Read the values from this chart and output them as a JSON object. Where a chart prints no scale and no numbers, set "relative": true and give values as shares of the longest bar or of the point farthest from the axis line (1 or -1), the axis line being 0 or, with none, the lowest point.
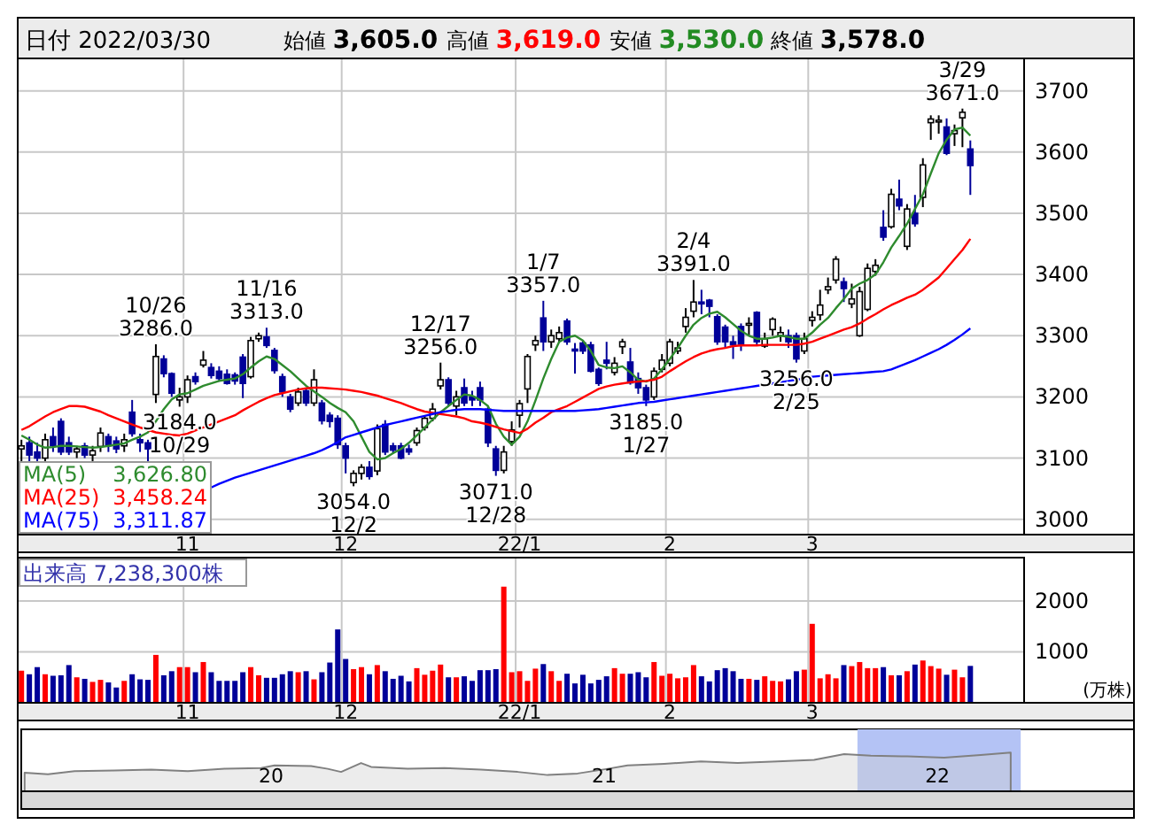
{
  "chart_data": [
    {
      "type": "candlestick",
      "title": "日付 2022/03/30",
      "categories": [
        null,
        null,
        null,
        null,
        null,
        null,
        null,
        null,
        null,
        null,
        null,
        null,
        null,
        null,
        null,
        null,
        null,
        null,
        null,
        null,
        null,
        "11",
        null,
        null,
        null,
        null,
        null,
        null,
        null,
        null,
        null,
        null,
        null,
        null,
        null,
        null,
        null,
        null,
        null,
        null,
        null,
        "12",
        null,
        null,
        null,
        null,
        null,
        null,
        null,
        null,
        null,
        null,
        null,
        null,
        null,
        null,
        null,
        null,
        null,
        null,
        null,
        null,
        null,
        "22/1",
        null,
        null,
        null,
        null,
        null,
        null,
        null,
        null,
        null,
        null,
        null,
        null,
        null,
        null,
        null,
        null,
        null,
        null,
        "2",
        null,
        null,
        null,
        null,
        null,
        null,
        null,
        null,
        null,
        null,
        null,
        null,
        null,
        null,
        null,
        null,
        null,
        "3",
        null,
        null,
        null,
        null,
        null,
        null,
        null,
        null,
        null,
        null,
        null,
        null,
        null,
        null,
        null,
        null,
        null,
        null,
        null,
        null
      ],
      "ohlc": [
        [
          3115,
          3130,
          3095,
          3120
        ],
        [
          3125,
          3135,
          3095,
          3105
        ],
        [
          3110,
          3125,
          3095,
          3100
        ],
        [
          3100,
          3140,
          3095,
          3130
        ],
        [
          3135,
          3150,
          3110,
          3120
        ],
        [
          3160,
          3165,
          3105,
          3110
        ],
        [
          3125,
          3135,
          3105,
          3110
        ],
        [
          3110,
          3120,
          3100,
          3115
        ],
        [
          3120,
          3125,
          3100,
          3105
        ],
        [
          3105,
          3120,
          3095,
          3112
        ],
        [
          3119,
          3150,
          3110,
          3141
        ],
        [
          3135,
          3140,
          3110,
          3120
        ],
        [
          3128,
          3135,
          3108,
          3115
        ],
        [
          3120,
          3140,
          3110,
          3130
        ],
        [
          3175,
          3195,
          3135,
          3140
        ],
        [
          3130,
          3140,
          3110,
          3125
        ],
        [
          3125,
          3130,
          3095,
          3115
        ],
        [
          3204,
          3286,
          3190,
          3266
        ],
        [
          3262,
          3268,
          3232,
          3238
        ],
        [
          3238,
          3240,
          3200,
          3206
        ],
        [
          3195,
          3215,
          3184,
          3200
        ],
        [
          3200,
          3235,
          3190,
          3228
        ],
        [
          3233,
          3240,
          3220,
          3225
        ],
        [
          3252,
          3275,
          3248,
          3260
        ],
        [
          3248,
          3255,
          3230,
          3235
        ],
        [
          3242,
          3250,
          3225,
          3230
        ],
        [
          3237,
          3245,
          3220,
          3222
        ],
        [
          3236,
          3240,
          3220,
          3226
        ],
        [
          3265,
          3270,
          3198,
          3222
        ],
        [
          3233,
          3298,
          3230,
          3292
        ],
        [
          3295,
          3305,
          3290,
          3300
        ],
        [
          3298,
          3313,
          3280,
          3284
        ],
        [
          3276,
          3280,
          3238,
          3243
        ],
        [
          3233,
          3238,
          3200,
          3208
        ],
        [
          3200,
          3205,
          3175,
          3180
        ],
        [
          3190,
          3215,
          3185,
          3208
        ],
        [
          3210,
          3215,
          3185,
          3190
        ],
        [
          3190,
          3245,
          3185,
          3228
        ],
        [
          3190,
          3195,
          3155,
          3161
        ],
        [
          3170,
          3175,
          3150,
          3160
        ],
        [
          3165,
          3170,
          3115,
          3122
        ],
        [
          3120,
          3125,
          3075,
          3100
        ],
        [
          3060,
          3080,
          3054,
          3075
        ],
        [
          3075,
          3090,
          3065,
          3085
        ],
        [
          3085,
          3095,
          3065,
          3070
        ],
        [
          3079,
          3155,
          3072,
          3148
        ],
        [
          3155,
          3162,
          3105,
          3110
        ],
        [
          3120,
          3125,
          3108,
          3113
        ],
        [
          3120,
          3125,
          3098,
          3100
        ],
        [
          3115,
          3122,
          3105,
          3110
        ],
        [
          3125,
          3150,
          3120,
          3145
        ],
        [
          3150,
          3170,
          3145,
          3165
        ],
        [
          3165,
          3190,
          3160,
          3180
        ],
        [
          3218,
          3256,
          3212,
          3228
        ],
        [
          3228,
          3232,
          3185,
          3190
        ],
        [
          3185,
          3210,
          3170,
          3200
        ],
        [
          3215,
          3230,
          3185,
          3190
        ],
        [
          3200,
          3210,
          3185,
          3195
        ],
        [
          3215,
          3225,
          3185,
          3195
        ],
        [
          3180,
          3185,
          3118,
          3125
        ],
        [
          3115,
          3120,
          3071,
          3080
        ],
        [
          3080,
          3120,
          3075,
          3110
        ],
        [
          3127,
          3160,
          3120,
          3146
        ],
        [
          3170,
          3195,
          3150,
          3189
        ],
        [
          3213,
          3270,
          3190,
          3266
        ],
        [
          3285,
          3300,
          3275,
          3292
        ],
        [
          3329,
          3357,
          3275,
          3290
        ],
        [
          3290,
          3310,
          3280,
          3300
        ],
        [
          3295,
          3315,
          3290,
          3305
        ],
        [
          3324,
          3328,
          3285,
          3290
        ],
        [
          3278,
          3288,
          3238,
          3275
        ],
        [
          3288,
          3292,
          3270,
          3275
        ],
        [
          3285,
          3290,
          3240,
          3242
        ],
        [
          3245,
          3248,
          3218,
          3222
        ],
        [
          3260,
          3290,
          3245,
          3255
        ],
        [
          3240,
          3265,
          3235,
          3255
        ],
        [
          3282,
          3295,
          3270,
          3290
        ],
        [
          3257,
          3280,
          3220,
          3223
        ],
        [
          3230,
          3240,
          3205,
          3215
        ],
        [
          3215,
          3220,
          3185,
          3195
        ],
        [
          3200,
          3248,
          3195,
          3242
        ],
        [
          3245,
          3270,
          3240,
          3260
        ],
        [
          3255,
          3295,
          3250,
          3290
        ],
        [
          3275,
          3290,
          3270,
          3280
        ],
        [
          3315,
          3345,
          3305,
          3330
        ],
        [
          3340,
          3391,
          3330,
          3355
        ],
        [
          3355,
          3375,
          3335,
          3352
        ],
        [
          3358,
          3360,
          3330,
          3348
        ],
        [
          3331,
          3335,
          3285,
          3290
        ],
        [
          3314,
          3318,
          3280,
          3290
        ],
        [
          3290,
          3300,
          3262,
          3285
        ],
        [
          3315,
          3320,
          3275,
          3286
        ],
        [
          3318,
          3330,
          3300,
          3320
        ],
        [
          3338,
          3340,
          3285,
          3290
        ],
        [
          3283,
          3305,
          3280,
          3295
        ],
        [
          3310,
          3330,
          3300,
          3327
        ],
        [
          3300,
          3315,
          3290,
          3305
        ],
        [
          3300,
          3310,
          3280,
          3290
        ],
        [
          3300,
          3305,
          3256,
          3262
        ],
        [
          3275,
          3305,
          3270,
          3295
        ],
        [
          3325,
          3340,
          3315,
          3330
        ],
        [
          3334,
          3375,
          3325,
          3350
        ],
        [
          3375,
          3395,
          3368,
          3380
        ],
        [
          3391,
          3430,
          3385,
          3425
        ],
        [
          3388,
          3395,
          3355,
          3377
        ],
        [
          3352,
          3385,
          3345,
          3360
        ],
        [
          3300,
          3380,
          3298,
          3372
        ],
        [
          3343,
          3418,
          3340,
          3410
        ],
        [
          3405,
          3425,
          3398,
          3415
        ],
        [
          3477,
          3505,
          3455,
          3461
        ],
        [
          3478,
          3540,
          3475,
          3531
        ],
        [
          3523,
          3555,
          3505,
          3512
        ],
        [
          3446,
          3515,
          3440,
          3507
        ],
        [
          3500,
          3530,
          3478,
          3483
        ],
        [
          3526,
          3590,
          3510,
          3579
        ],
        [
          3648,
          3660,
          3620,
          3654
        ],
        [
          3650,
          3660,
          3630,
          3652
        ],
        [
          3641,
          3655,
          3595,
          3598
        ],
        [
          3630,
          3645,
          3610,
          3635
        ],
        [
          3656,
          3671,
          3608,
          3665
        ],
        [
          3605,
          3619,
          3530,
          3578
        ]
      ],
      "series": [
        {
          "name": "MA(5)",
          "type": "line",
          "color": "#2e8b2e",
          "values": [
            3137,
            3130,
            3122,
            3117,
            3118,
            3120,
            3120,
            3119,
            3118,
            3117,
            3118,
            3120,
            3122,
            3124,
            3130,
            3135,
            3142,
            3160,
            3180,
            3196,
            3204,
            3206,
            3212,
            3218,
            3222,
            3226,
            3228,
            3230,
            3237,
            3248,
            3258,
            3266,
            3262,
            3252,
            3242,
            3230,
            3218,
            3209,
            3200,
            3190,
            3182,
            3175,
            3160,
            3135,
            3110,
            3098,
            3100,
            3108,
            3115,
            3125,
            3137,
            3150,
            3163,
            3175,
            3185,
            3195,
            3204,
            3202,
            3195,
            3185,
            3156,
            3135,
            3122,
            3135,
            3160,
            3194,
            3230,
            3262,
            3290,
            3297,
            3300,
            3292,
            3275,
            3252,
            3248,
            3247,
            3250,
            3240,
            3228,
            3225,
            3230,
            3245,
            3262,
            3280,
            3300,
            3318,
            3329,
            3336,
            3339,
            3330,
            3319,
            3308,
            3300,
            3295,
            3295,
            3297,
            3300,
            3298,
            3295,
            3295,
            3305,
            3318,
            3329,
            3345,
            3360,
            3377,
            3385,
            3391,
            3400,
            3420,
            3444,
            3463,
            3483,
            3507,
            3531,
            3565,
            3598,
            3620,
            3637,
            3640,
            3626.8
          ]
        },
        {
          "name": "MA(25)",
          "type": "line",
          "color": "#ff0000",
          "values": [
            3146,
            3152,
            3160,
            3168,
            3175,
            3180,
            3185,
            3185,
            3184,
            3180,
            3176,
            3170,
            3165,
            3160,
            3155,
            3150,
            3146,
            3142,
            3140,
            3138,
            3137,
            3140,
            3145,
            3150,
            3155,
            3160,
            3165,
            3170,
            3178,
            3185,
            3192,
            3198,
            3203,
            3206,
            3209,
            3212,
            3214,
            3215,
            3215,
            3214,
            3213,
            3212,
            3210,
            3208,
            3205,
            3202,
            3198,
            3194,
            3190,
            3185,
            3180,
            3176,
            3174,
            3172,
            3170,
            3168,
            3165,
            3160,
            3158,
            3155,
            3151,
            3147,
            3144,
            3141,
            3148,
            3158,
            3166,
            3175,
            3180,
            3185,
            3192,
            3199,
            3206,
            3213,
            3217,
            3220,
            3222,
            3224,
            3225,
            3226,
            3228,
            3233,
            3242,
            3250,
            3258,
            3265,
            3271,
            3275,
            3278,
            3280,
            3283,
            3284,
            3284,
            3284,
            3285,
            3285,
            3285,
            3285,
            3285,
            3287,
            3290,
            3295,
            3300,
            3305,
            3310,
            3314,
            3320,
            3328,
            3335,
            3343,
            3350,
            3356,
            3362,
            3367,
            3375,
            3385,
            3395,
            3410,
            3425,
            3440,
            3458.24
          ]
        },
        {
          "name": "MA(75)",
          "type": "line",
          "color": "#0000ff",
          "values": [
            null,
            null,
            null,
            null,
            null,
            null,
            null,
            null,
            null,
            null,
            null,
            null,
            null,
            null,
            null,
            null,
            null,
            null,
            null,
            null,
            null,
            null,
            null,
            null,
            3052,
            3058,
            3063,
            3068,
            3072,
            3076,
            3080,
            3084,
            3088,
            3092,
            3096,
            3100,
            3104,
            3108,
            3113,
            3119,
            3126,
            3134,
            3138,
            3142,
            3146,
            3150,
            3154,
            3157,
            3160,
            3163,
            3166,
            3169,
            3172,
            3175,
            3177,
            3179,
            3180,
            3180,
            3180,
            3179,
            3178,
            3177,
            3177,
            3177,
            3177,
            3177,
            3177,
            3177,
            3177,
            3177,
            3177,
            3178,
            3179,
            3180,
            3182,
            3184,
            3186,
            3188,
            3190,
            3191,
            3192,
            3194,
            3196,
            3198,
            3200,
            3202,
            3204,
            3206,
            3208,
            3210,
            3212,
            3214,
            3216,
            3218,
            3220,
            3222,
            3224,
            3226,
            3228,
            3230,
            3233,
            3234,
            3235,
            3236,
            3237,
            3238,
            3239,
            3240,
            3241,
            3242,
            3245,
            3250,
            3255,
            3260,
            3266,
            3272,
            3278,
            3285,
            3293,
            3302,
            3311.87
          ]
        }
      ],
      "ylim": [
        2975,
        3753
      ],
      "yticks": [
        3000,
        3100,
        3200,
        3300,
        3400,
        3500,
        3600,
        3700
      ],
      "grid": true,
      "legend": "bottom left",
      "annotations": [
        "始値 **3,605.0**",
        "高値 **3,619.0**",
        "安値 **3,530.0**",
        "終値 **3,578.0**",
        "3,626.80",
        "3,458.24",
        "3,311.87",
        {
          "text": "10/26\n3286.0",
          "y": 3286
        },
        {
          "text": "3184.0\n10/29",
          "y": 3184
        },
        {
          "text": "11/16\n3313.0",
          "y": 3313
        },
        {
          "text": "3054.0\n12/2",
          "y": 3054
        },
        {
          "text": "12/17\n3256.0",
          "y": 3256
        },
        {
          "text": "3071.0\n12/28",
          "y": 3071
        },
        {
          "text": "1/7\n3357.0",
          "y": 3357
        },
        {
          "text": "3185.0\n1/27",
          "y": 3185
        },
        {
          "text": "2/4\n3391.0",
          "y": 3391
        },
        {
          "text": "3256.0\n2/25",
          "y": 3256
        },
        {
          "text": "3/29\n3671.0",
          "y": 3671
        }
      ]
    },
    {
      "type": "bar",
      "title": "出来高  7,238,300株",
      "ylabel": "(万株)",
      "categories": [
        null,
        null,
        null,
        null,
        null,
        null,
        null,
        null,
        null,
        null,
        null,
        null,
        null,
        null,
        null,
        null,
        null,
        null,
        null,
        null,
        null,
        "11",
        null,
        null,
        null,
        null,
        null,
        null,
        null,
        null,
        null,
        null,
        null,
        null,
        null,
        null,
        null,
        null,
        null,
        null,
        null,
        "12",
        null,
        null,
        null,
        null,
        null,
        null,
        null,
        null,
        null,
        null,
        null,
        null,
        null,
        null,
        null,
        null,
        null,
        null,
        null,
        null,
        null,
        "22/1",
        null,
        null,
        null,
        null,
        null,
        null,
        null,
        null,
        null,
        null,
        null,
        null,
        null,
        null,
        null,
        null,
        null,
        null,
        "2",
        null,
        null,
        null,
        null,
        null,
        null,
        null,
        null,
        null,
        null,
        null,
        null,
        null,
        null,
        null,
        null,
        null,
        "3",
        null,
        null,
        null,
        null,
        null,
        null,
        null,
        null,
        null,
        null,
        null,
        null,
        null,
        null,
        null,
        null,
        null,
        null,
        null,
        null
      ],
      "values": [
        630,
        560,
        700,
        560,
        530,
        540,
        740,
        500,
        470,
        410,
        450,
        400,
        300,
        430,
        560,
        460,
        450,
        940,
        540,
        620,
        700,
        700,
        600,
        800,
        600,
        430,
        430,
        430,
        600,
        700,
        540,
        490,
        490,
        560,
        620,
        600,
        620,
        460,
        600,
        790,
        1440,
        860,
        660,
        700,
        560,
        740,
        620,
        470,
        530,
        420,
        680,
        550,
        630,
        750,
        500,
        500,
        520,
        430,
        640,
        640,
        660,
        2280,
        600,
        620,
        430,
        670,
        760,
        620,
        430,
        570,
        380,
        550,
        380,
        450,
        520,
        680,
        570,
        570,
        600,
        500,
        800,
        530,
        570,
        480,
        500,
        740,
        520,
        420,
        640,
        680,
        620,
        470,
        470,
        450,
        520,
        430,
        420,
        460,
        620,
        650,
        1550,
        480,
        560,
        480,
        740,
        720,
        800,
        680,
        680,
        700,
        540,
        540,
        620,
        750,
        830,
        720,
        670,
        550,
        650,
        500,
        723.83
      ],
      "colors": [
        "#ff0000",
        "#000099",
        "#000099",
        "#ff0000",
        "#000099",
        "#000099",
        "#000099",
        "#ff0000",
        "#000099",
        "#ff0000",
        "#ff0000",
        "#000099",
        "#000099",
        "#ff0000",
        "#000099",
        "#000099",
        "#000099",
        "#ff0000",
        "#000099",
        "#000099",
        "#ff0000",
        "#ff0000",
        "#000099",
        "#ff0000",
        "#000099",
        "#000099",
        "#000099",
        "#000099",
        "#000099",
        "#ff0000",
        "#ff0000",
        "#000099",
        "#000099",
        "#000099",
        "#000099",
        "#ff0000",
        "#000099",
        "#ff0000",
        "#000099",
        "#000099",
        "#000099",
        "#000099",
        "#ff0000",
        "#ff0000",
        "#000099",
        "#ff0000",
        "#000099",
        "#000099",
        "#000099",
        "#000099",
        "#ff0000",
        "#ff0000",
        "#ff0000",
        "#ff0000",
        "#000099",
        "#ff0000",
        "#000099",
        "#000099",
        "#000099",
        "#000099",
        "#000099",
        "#ff0000",
        "#ff0000",
        "#ff0000",
        "#ff0000",
        "#ff0000",
        "#000099",
        "#ff0000",
        "#ff0000",
        "#000099",
        "#000099",
        "#000099",
        "#000099",
        "#000099",
        "#000099",
        "#ff0000",
        "#ff0000",
        "#000099",
        "#000099",
        "#000099",
        "#ff0000",
        "#ff0000",
        "#ff0000",
        "#ff0000",
        "#ff0000",
        "#ff0000",
        "#000099",
        "#000099",
        "#000099",
        "#000099",
        "#000099",
        "#000099",
        "#ff0000",
        "#000099",
        "#ff0000",
        "#ff0000",
        "#ff0000",
        "#000099",
        "#000099",
        "#ff0000",
        "#ff0000",
        "#ff0000",
        "#ff0000",
        "#ff0000",
        "#000099",
        "#ff0000",
        "#ff0000",
        "#ff0000",
        "#ff0000",
        "#000099",
        "#ff0000",
        "#000099",
        "#ff0000",
        "#000099",
        "#ff0000",
        "#ff0000",
        "#ff0000",
        "#000099",
        "#ff0000",
        "#ff0000",
        "#000099"
      ],
      "ylim": [
        0,
        2850
      ],
      "yticks": [
        1000,
        2000
      ],
      "grid": true
    },
    {
      "type": "area",
      "relative": true,
      "color": "#808080",
      "x": [
        2019.26,
        2019.33,
        2019.41,
        2019.53,
        2019.64,
        2019.75,
        2019.86,
        2019.97,
        2020.01,
        2020.12,
        2020.17,
        2020.21,
        2020.27,
        2020.3,
        2020.41,
        2020.52,
        2020.63,
        2020.74,
        2020.83,
        2020.92,
        2021.01,
        2021.07,
        2021.18,
        2021.29,
        2021.4,
        2021.52,
        2021.63,
        2021.72,
        2021.8,
        2021.91,
        2022.02,
        2022.13,
        2022.22
      ],
      "values": [
        0.48,
        0.44,
        0.52,
        0.54,
        0.56,
        0.52,
        0.58,
        0.6,
        0.67,
        0.65,
        0.58,
        0.5,
        0.73,
        0.63,
        0.58,
        0.6,
        0.56,
        0.5,
        0.42,
        0.46,
        0.58,
        0.67,
        0.71,
        0.77,
        0.73,
        0.77,
        0.81,
        0.96,
        0.92,
        0.9,
        0.87,
        0.94,
        1
      ],
      "xlim": [
        2019.25,
        2022.59
      ],
      "xticks": [
        {
          "value": 2020,
          "label": "20"
        },
        {
          "value": 2021,
          "label": "21"
        },
        {
          "value": 2022,
          "label": "22"
        }
      ],
      "bands": [
        {
          "axis": "x",
          "from": 2021.76,
          "to": 2022.25,
          "color": "#b4c3f5"
        }
      ]
    }
  ]
}
